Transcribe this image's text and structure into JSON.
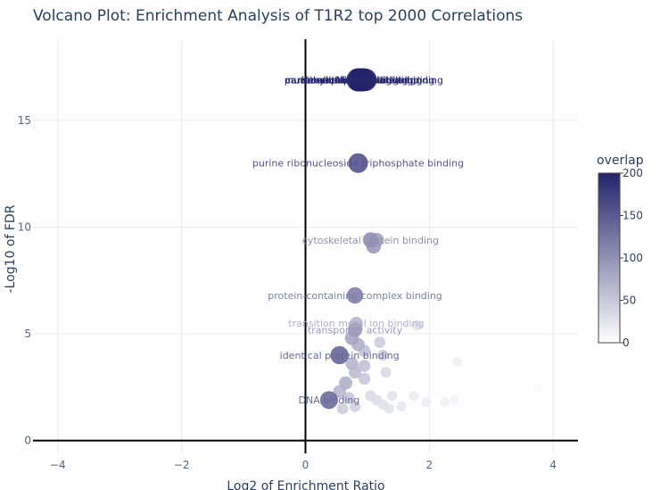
{
  "chart_data": {
    "type": "scatter",
    "title": "Volcano Plot: Enrichment Analysis of T1R2 top 2000 Correlations",
    "xlabel": "Log2 of Enrichment Ratio",
    "ylabel": "-Log10 of FDR",
    "xlim": [
      -4.4,
      4.4
    ],
    "ylim": [
      -0.6,
      18.8
    ],
    "x_ticks": [
      -4,
      -2,
      0,
      2,
      4
    ],
    "y_ticks": [
      0,
      5,
      10,
      15
    ],
    "grid": true,
    "colorbar": {
      "title": "overlap",
      "range": [
        0,
        200
      ],
      "ticks": [
        0,
        50,
        100,
        150,
        200
      ],
      "color_low": "#ffffff",
      "color_high": "#23246b"
    },
    "label_overlap": "pa…",
    "points": [
      {
        "x": 0.85,
        "y": 16.9,
        "overlap": 200,
        "label": "ribonucleotide binding"
      },
      {
        "x": 0.88,
        "y": 16.9,
        "overlap": 200,
        "label": "ribose phosphate binding"
      },
      {
        "x": 0.92,
        "y": 16.9,
        "overlap": 196,
        "label": "nucleotide binding"
      },
      {
        "x": 0.95,
        "y": 16.9,
        "overlap": 195,
        "label": "carbohydrate derivative binding"
      },
      {
        "x": 0.9,
        "y": 16.9,
        "overlap": 198,
        "label": "nucleoside phosphate binding"
      },
      {
        "x": 0.97,
        "y": 16.9,
        "overlap": 190,
        "label": "anion binding"
      },
      {
        "x": 0.87,
        "y": 16.9,
        "overlap": 199,
        "label": "small molecule binding"
      },
      {
        "x": 0.93,
        "y": 16.9,
        "overlap": 194,
        "label": "ATP binding"
      },
      {
        "x": 0.85,
        "y": 13.0,
        "overlap": 150,
        "label": "purine ribonucleoside triphosphate binding"
      },
      {
        "x": 1.05,
        "y": 9.4,
        "overlap": 90,
        "label": "cytoskeletal protein binding"
      },
      {
        "x": 1.15,
        "y": 9.4,
        "overlap": 75,
        "label": ""
      },
      {
        "x": 1.1,
        "y": 9.1,
        "overlap": 80,
        "label": ""
      },
      {
        "x": 0.8,
        "y": 6.8,
        "overlap": 105,
        "label": "protein-containing complex binding"
      },
      {
        "x": 0.82,
        "y": 5.5,
        "overlap": 55,
        "label": "transition metal ion binding"
      },
      {
        "x": 0.8,
        "y": 5.2,
        "overlap": 80,
        "label": "transporter activity"
      },
      {
        "x": 0.55,
        "y": 4.0,
        "overlap": 130,
        "label": "identical protein binding"
      },
      {
        "x": 0.38,
        "y": 1.9,
        "overlap": 125,
        "label": "DNA binding"
      },
      {
        "x": 0.75,
        "y": 4.8,
        "overlap": 70,
        "label": ""
      },
      {
        "x": 0.85,
        "y": 4.5,
        "overlap": 60,
        "label": ""
      },
      {
        "x": 0.95,
        "y": 4.2,
        "overlap": 45,
        "label": ""
      },
      {
        "x": 1.2,
        "y": 4.6,
        "overlap": 35,
        "label": ""
      },
      {
        "x": 1.25,
        "y": 4.0,
        "overlap": 30,
        "label": ""
      },
      {
        "x": 0.75,
        "y": 3.6,
        "overlap": 55,
        "label": ""
      },
      {
        "x": 0.95,
        "y": 3.5,
        "overlap": 45,
        "label": ""
      },
      {
        "x": 1.3,
        "y": 3.2,
        "overlap": 25,
        "label": ""
      },
      {
        "x": 0.8,
        "y": 3.2,
        "overlap": 50,
        "label": ""
      },
      {
        "x": 0.95,
        "y": 2.9,
        "overlap": 40,
        "label": ""
      },
      {
        "x": 0.65,
        "y": 2.7,
        "overlap": 60,
        "label": ""
      },
      {
        "x": 0.55,
        "y": 2.3,
        "overlap": 55,
        "label": ""
      },
      {
        "x": 0.7,
        "y": 2.0,
        "overlap": 40,
        "label": ""
      },
      {
        "x": 1.05,
        "y": 2.1,
        "overlap": 25,
        "label": ""
      },
      {
        "x": 1.15,
        "y": 1.9,
        "overlap": 22,
        "label": ""
      },
      {
        "x": 1.25,
        "y": 1.7,
        "overlap": 20,
        "label": ""
      },
      {
        "x": 1.4,
        "y": 2.1,
        "overlap": 18,
        "label": ""
      },
      {
        "x": 1.55,
        "y": 1.6,
        "overlap": 15,
        "label": ""
      },
      {
        "x": 1.35,
        "y": 1.5,
        "overlap": 18,
        "label": ""
      },
      {
        "x": 0.8,
        "y": 1.6,
        "overlap": 30,
        "label": ""
      },
      {
        "x": 0.6,
        "y": 1.5,
        "overlap": 35,
        "label": ""
      },
      {
        "x": 1.8,
        "y": 5.4,
        "overlap": 20,
        "label": ""
      },
      {
        "x": 1.75,
        "y": 2.1,
        "overlap": 12,
        "label": ""
      },
      {
        "x": 1.95,
        "y": 1.8,
        "overlap": 10,
        "label": ""
      },
      {
        "x": 2.25,
        "y": 1.8,
        "overlap": 8,
        "label": ""
      },
      {
        "x": 2.45,
        "y": 3.7,
        "overlap": 8,
        "label": ""
      },
      {
        "x": 2.4,
        "y": 1.9,
        "overlap": 6,
        "label": ""
      },
      {
        "x": 3.75,
        "y": 2.5,
        "overlap": 3,
        "label": ""
      }
    ]
  }
}
